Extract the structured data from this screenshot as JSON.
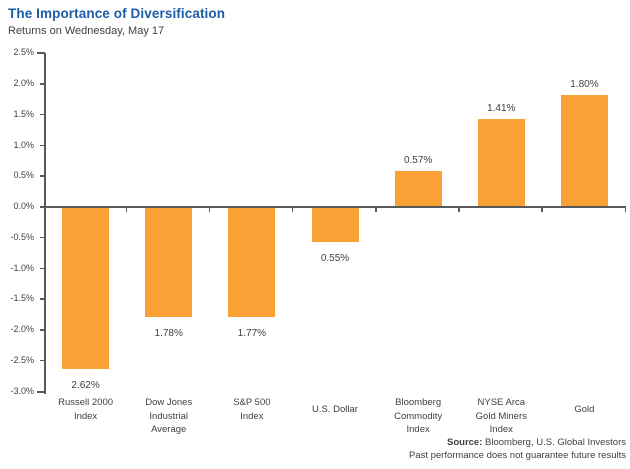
{
  "header": {
    "title": "The Importance of Diversification",
    "subtitle": "Returns on Wednesday, May 17"
  },
  "footer": {
    "source_label": "Source:",
    "source_text": " Bloomberg, U.S. Global Investors",
    "disclaimer": "Past performance does not guarantee future results"
  },
  "colors": {
    "bar": "#F9A134",
    "title_blue": "#1D5DA7",
    "axis": "#58595B",
    "text": "#414042"
  },
  "chart_data": {
    "type": "bar",
    "title": "The Importance of Diversification",
    "subtitle": "Returns on Wednesday, May 17",
    "categories": [
      "Russell 2000 Index",
      "Dow Jones Industrial Average",
      "S&P 500 Index",
      "U.S. Dollar",
      "Bloomberg Commodity Index",
      "NYSE Arca Gold Miners Index",
      "Gold"
    ],
    "category_lines": [
      [
        "Russell 2000",
        "Index"
      ],
      [
        "Dow Jones",
        "Industrial",
        "Average"
      ],
      [
        "S&P 500",
        "Index"
      ],
      [
        "U.S. Dollar"
      ],
      [
        "Bloomberg",
        "Commodity",
        "Index"
      ],
      [
        "NYSE Arca",
        "Gold Miners",
        "Index"
      ],
      [
        "Gold"
      ]
    ],
    "values": [
      -2.62,
      -1.78,
      -1.77,
      -0.55,
      0.57,
      1.41,
      1.8
    ],
    "value_labels": [
      "2.62%",
      "1.78%",
      "1.77%",
      "0.55%",
      "0.57%",
      "1.41%",
      "1.80%"
    ],
    "y_ticks": [
      "2.5%",
      "2.0%",
      "1.5%",
      "1.0%",
      "0.5%",
      "0.0%",
      "-0.5%",
      "-1.0%",
      "-1.5%",
      "-2.0%",
      "-2.5%",
      "-3.0%"
    ],
    "ylim": [
      -3.0,
      2.5
    ],
    "y_step": 0.5,
    "xlabel": "",
    "ylabel": "",
    "grid": false,
    "legend": "none",
    "bar_color": "#F9A134"
  }
}
